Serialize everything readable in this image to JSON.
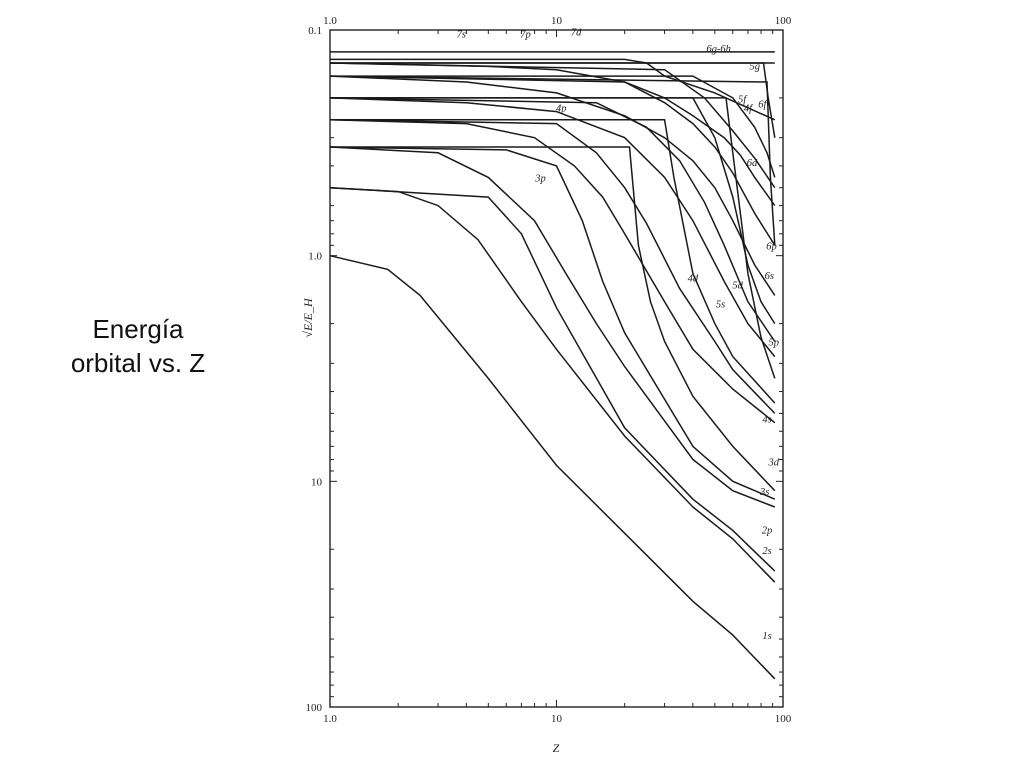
{
  "slide": {
    "caption_line1": "Energía",
    "caption_line2": "orbital vs. Z"
  },
  "chart_data": {
    "type": "line",
    "x_scale": "log",
    "y_scale": "log",
    "y_inverted": true,
    "xlim": [
      1,
      100
    ],
    "ylim": [
      0.1,
      100
    ],
    "xlabel": "Z",
    "ylabel": "√E/E_H",
    "x_ticks": [
      "1.0",
      "10",
      "100"
    ],
    "y_ticks": [
      "0.1",
      "1.0",
      "10",
      "100"
    ],
    "grid": false,
    "series": [
      {
        "name": "1s",
        "label_at": [
          85,
          50
        ],
        "points": [
          [
            1,
            1.0
          ],
          [
            1.8,
            1.15
          ],
          [
            2.5,
            1.5
          ],
          [
            5,
            3.5
          ],
          [
            10,
            8.5
          ],
          [
            20,
            17
          ],
          [
            40,
            34
          ],
          [
            60,
            48
          ],
          [
            92,
            75
          ]
        ]
      },
      {
        "name": "2s",
        "label_at": [
          85,
          21
        ],
        "points": [
          [
            1,
            0.5
          ],
          [
            2,
            0.52
          ],
          [
            3,
            0.6
          ],
          [
            4.5,
            0.85
          ],
          [
            7,
            1.6
          ],
          [
            10,
            2.6
          ],
          [
            20,
            6.3
          ],
          [
            40,
            13
          ],
          [
            60,
            18
          ],
          [
            92,
            28
          ]
        ]
      },
      {
        "name": "2p",
        "label_at": [
          85,
          17
        ],
        "points": [
          [
            1,
            0.5
          ],
          [
            5,
            0.55
          ],
          [
            7,
            0.8
          ],
          [
            10,
            1.7
          ],
          [
            20,
            5.8
          ],
          [
            40,
            12
          ],
          [
            60,
            16.5
          ],
          [
            92,
            25
          ]
        ]
      },
      {
        "name": "3s",
        "label_at": [
          83,
          11.5
        ],
        "points": [
          [
            1,
            0.33
          ],
          [
            3,
            0.35
          ],
          [
            5,
            0.45
          ],
          [
            8,
            0.7
          ],
          [
            11,
            1.2
          ],
          [
            15,
            2.0
          ],
          [
            20,
            3.1
          ],
          [
            40,
            8
          ],
          [
            60,
            11
          ],
          [
            92,
            13
          ]
        ]
      },
      {
        "name": "3p",
        "label_at": [
          8.5,
          0.47
        ],
        "points": [
          [
            1,
            0.33
          ],
          [
            6,
            0.34
          ],
          [
            10,
            0.4
          ],
          [
            13,
            0.7
          ],
          [
            16,
            1.3
          ],
          [
            20,
            2.2
          ],
          [
            40,
            7
          ],
          [
            60,
            10
          ],
          [
            92,
            12
          ]
        ]
      },
      {
        "name": "3d",
        "label_at": [
          91,
          8.5
        ],
        "points": [
          [
            1,
            0.33
          ],
          [
            21,
            0.33
          ],
          [
            23,
            0.9
          ],
          [
            26,
            1.6
          ],
          [
            30,
            2.4
          ],
          [
            40,
            4.2
          ],
          [
            60,
            7
          ],
          [
            92,
            11
          ]
        ]
      },
      {
        "name": "4s",
        "label_at": [
          85,
          5.5
        ],
        "points": [
          [
            1,
            0.25
          ],
          [
            4,
            0.26
          ],
          [
            8,
            0.3
          ],
          [
            12,
            0.4
          ],
          [
            16,
            0.55
          ],
          [
            20,
            0.8
          ],
          [
            30,
            1.6
          ],
          [
            40,
            2.6
          ],
          [
            60,
            3.9
          ],
          [
            92,
            5.5
          ]
        ]
      },
      {
        "name": "4p",
        "label_at": [
          10.5,
          0.23
        ],
        "points": [
          [
            1,
            0.25
          ],
          [
            10,
            0.26
          ],
          [
            15,
            0.35
          ],
          [
            20,
            0.5
          ],
          [
            25,
            0.72
          ],
          [
            35,
            1.4
          ],
          [
            50,
            2.4
          ],
          [
            60,
            3.2
          ],
          [
            92,
            5
          ]
        ]
      },
      {
        "name": "4d",
        "label_at": [
          40,
          1.3
        ],
        "points": [
          [
            1,
            0.25
          ],
          [
            30,
            0.25
          ],
          [
            33,
            0.45
          ],
          [
            40,
            1.2
          ],
          [
            50,
            2.0
          ],
          [
            60,
            2.8
          ],
          [
            92,
            4.5
          ]
        ]
      },
      {
        "name": "4f",
        "label_at": [
          70,
          0.23
        ],
        "points": [
          [
            1,
            0.2
          ],
          [
            56,
            0.2
          ],
          [
            60,
            0.35
          ],
          [
            70,
            1.2
          ],
          [
            80,
            2.3
          ],
          [
            92,
            3.5
          ]
        ]
      },
      {
        "name": "5s",
        "label_at": [
          53,
          1.7
        ],
        "points": [
          [
            1,
            0.2
          ],
          [
            4,
            0.21
          ],
          [
            10,
            0.23
          ],
          [
            20,
            0.3
          ],
          [
            30,
            0.45
          ],
          [
            40,
            0.7
          ],
          [
            55,
            1.3
          ],
          [
            70,
            2.0
          ],
          [
            92,
            2.8
          ]
        ]
      },
      {
        "name": "5p",
        "label_at": [
          91,
          2.5
        ],
        "points": [
          [
            1,
            0.2
          ],
          [
            15,
            0.21
          ],
          [
            25,
            0.27
          ],
          [
            35,
            0.38
          ],
          [
            45,
            0.58
          ],
          [
            55,
            0.9
          ],
          [
            70,
            1.6
          ],
          [
            92,
            2.4
          ]
        ]
      },
      {
        "name": "5d",
        "label_at": [
          63,
          1.4
        ],
        "points": [
          [
            1,
            0.2
          ],
          [
            40,
            0.2
          ],
          [
            50,
            0.3
          ],
          [
            60,
            0.55
          ],
          [
            70,
            1.1
          ],
          [
            80,
            1.6
          ],
          [
            92,
            2.0
          ]
        ]
      },
      {
        "name": "5f",
        "label_at": [
          66,
          0.21
        ],
        "points": [
          [
            1,
            0.16
          ],
          [
            85,
            0.17
          ],
          [
            88,
            0.45
          ],
          [
            92,
            0.9
          ]
        ]
      },
      {
        "name": "5g",
        "label_at": [
          75,
          0.15
        ],
        "points": [
          [
            1,
            0.14
          ],
          [
            92,
            0.14
          ]
        ]
      },
      {
        "name": "6s",
        "label_at": [
          87,
          1.27
        ],
        "points": [
          [
            1,
            0.16
          ],
          [
            4,
            0.17
          ],
          [
            10,
            0.19
          ],
          [
            20,
            0.24
          ],
          [
            30,
            0.3
          ],
          [
            40,
            0.38
          ],
          [
            50,
            0.5
          ],
          [
            60,
            0.7
          ],
          [
            75,
            1.1
          ],
          [
            92,
            1.5
          ]
        ]
      },
      {
        "name": "6p",
        "label_at": [
          89,
          0.94
        ],
        "points": [
          [
            1,
            0.16
          ],
          [
            20,
            0.17
          ],
          [
            30,
            0.21
          ],
          [
            40,
            0.26
          ],
          [
            50,
            0.33
          ],
          [
            60,
            0.43
          ],
          [
            75,
            0.65
          ],
          [
            92,
            0.9
          ]
        ]
      },
      {
        "name": "6d",
        "label_at": [
          73,
          0.4
        ],
        "points": [
          [
            1,
            0.16
          ],
          [
            40,
            0.16
          ],
          [
            60,
            0.2
          ],
          [
            75,
            0.27
          ],
          [
            85,
            0.35
          ],
          [
            92,
            0.45
          ]
        ]
      },
      {
        "name": "6f",
        "label_at": [
          81,
          0.22
        ],
        "points": [
          [
            1,
            0.14
          ],
          [
            82,
            0.14
          ],
          [
            86,
            0.2
          ],
          [
            92,
            0.3
          ]
        ]
      },
      {
        "name": "6g-6h",
        "label_at": [
          52,
          0.125
        ],
        "points": [
          [
            1,
            0.125
          ],
          [
            92,
            0.125
          ]
        ]
      },
      {
        "name": "7s",
        "label_at": [
          3.8,
          0.108
        ],
        "points": [
          [
            1,
            0.14
          ],
          [
            5,
            0.145
          ],
          [
            10,
            0.15
          ],
          [
            20,
            0.17
          ],
          [
            30,
            0.2
          ],
          [
            40,
            0.24
          ],
          [
            55,
            0.3
          ],
          [
            65,
            0.36
          ],
          [
            75,
            0.45
          ],
          [
            92,
            0.6
          ]
        ]
      },
      {
        "name": "7p",
        "label_at": [
          7.3,
          0.108
        ],
        "points": [
          [
            1,
            0.14
          ],
          [
            30,
            0.15
          ],
          [
            45,
            0.2
          ],
          [
            60,
            0.28
          ],
          [
            75,
            0.37
          ],
          [
            92,
            0.5
          ]
        ]
      },
      {
        "name": "7d",
        "label_at": [
          12.2,
          0.106
        ],
        "points": [
          [
            1,
            0.135
          ],
          [
            20,
            0.135
          ],
          [
            25,
            0.14
          ],
          [
            30,
            0.16
          ],
          [
            50,
            0.19
          ],
          [
            92,
            0.25
          ]
        ]
      }
    ]
  }
}
